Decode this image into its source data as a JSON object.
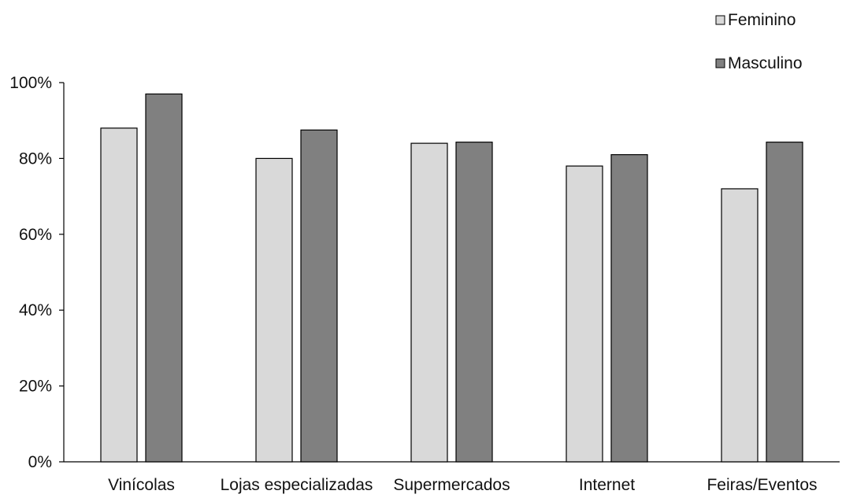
{
  "chart_data": {
    "type": "bar",
    "title": "",
    "xlabel": "",
    "ylabel": "",
    "categories": [
      "Vinícolas",
      "Lojas especializadas",
      "Supermercados",
      "Internet",
      "Feiras/Eventos"
    ],
    "series": [
      {
        "name": "Feminino",
        "color": "#d9d9d9",
        "values": [
          88,
          80,
          84,
          78,
          72
        ]
      },
      {
        "name": "Masculino",
        "color": "#808080",
        "values": [
          97,
          87.5,
          84.3,
          81,
          84.3
        ]
      }
    ],
    "ylim": [
      0,
      100
    ],
    "yticks": [
      0,
      20,
      40,
      60,
      80,
      100
    ],
    "ytick_labels": [
      "0%",
      "20%",
      "40%",
      "60%",
      "80%",
      "100%"
    ],
    "grid": false,
    "legend_position": "top-right"
  }
}
